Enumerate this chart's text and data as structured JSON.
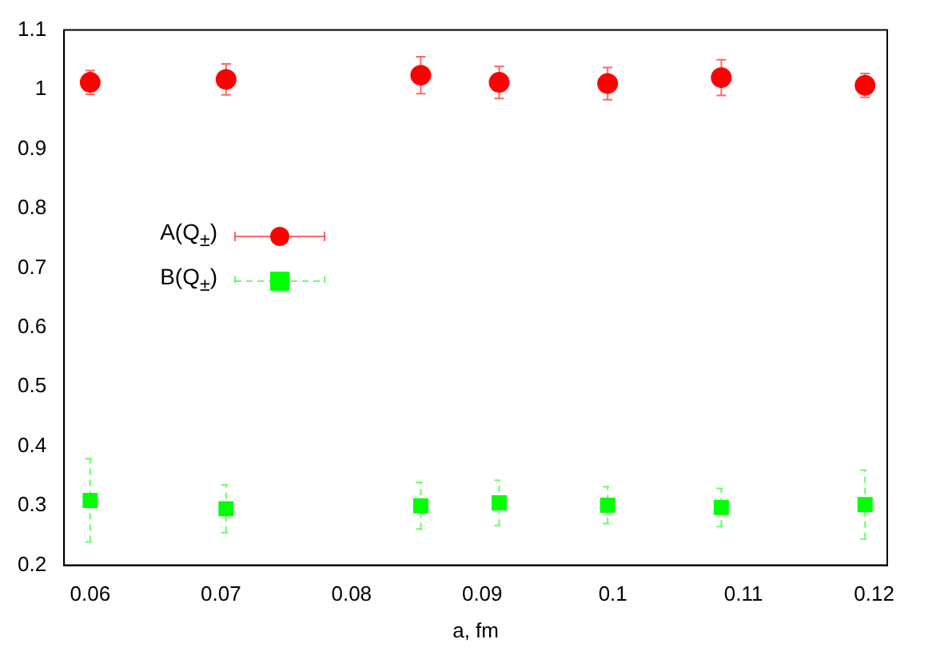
{
  "chart_data": {
    "type": "scatter",
    "xlabel": "a, fm",
    "xlim": [
      0.058,
      0.121
    ],
    "xticks": [
      0.06,
      0.07,
      0.08,
      0.09,
      0.1,
      0.11,
      0.12
    ],
    "ylim": [
      0.2,
      1.1
    ],
    "yticks": [
      0.2,
      0.3,
      0.4,
      0.5,
      0.6,
      0.7,
      0.8,
      0.9,
      1,
      1.1
    ],
    "grid": false,
    "legend": "left",
    "x": [
      0.06,
      0.0704,
      0.0853,
      0.0913,
      0.0996,
      0.1083,
      0.1193
    ],
    "series": [
      {
        "name": "A(Q$_{±}$)",
        "color": "#ff0000",
        "marker": "circle",
        "line_style": "solid",
        "values": [
          1.012,
          1.017,
          1.024,
          1.012,
          1.01,
          1.02,
          1.007
        ],
        "errors": [
          0.02,
          0.026,
          0.031,
          0.027,
          0.027,
          0.03,
          0.02
        ]
      },
      {
        "name": "B(Q$_{±}$)",
        "color": "#00ff00",
        "marker": "square",
        "line_style": "dashed",
        "values": [
          0.309,
          0.295,
          0.3,
          0.305,
          0.301,
          0.297,
          0.302
        ],
        "errors": [
          0.07,
          0.04,
          0.039,
          0.038,
          0.031,
          0.032,
          0.058
        ]
      }
    ]
  }
}
